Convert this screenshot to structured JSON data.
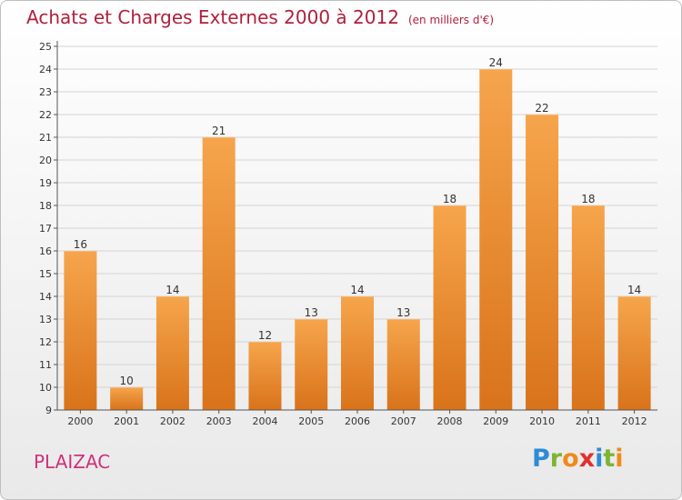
{
  "header": {
    "title": "Achats et Charges Externes 2000 à 2012",
    "subtitle": "(en milliers d'€)"
  },
  "commune": "PLAIZAC",
  "logo": {
    "letters": [
      "P",
      "r",
      "o",
      "x",
      "i",
      "t",
      "i"
    ],
    "colors": [
      "#2e8bd6",
      "#7cb534",
      "#f08a1c",
      "#e12f2f",
      "#2e8bd6",
      "#7cb534",
      "#f08a1c"
    ]
  },
  "chart_data": {
    "type": "bar",
    "title": "Achats et Charges Externes 2000 à 2012",
    "categories": [
      "2000",
      "2001",
      "2002",
      "2003",
      "2004",
      "2005",
      "2006",
      "2007",
      "2008",
      "2009",
      "2010",
      "2011",
      "2012"
    ],
    "values": [
      16,
      10,
      14,
      21,
      12,
      13,
      14,
      13,
      18,
      24,
      22,
      18,
      14
    ],
    "ylim": [
      9,
      25
    ],
    "yticks": [
      9,
      10,
      11,
      12,
      13,
      14,
      15,
      16,
      17,
      18,
      19,
      20,
      21,
      22,
      23,
      24,
      25
    ],
    "grid": true,
    "bar_color": "#f39a35"
  }
}
